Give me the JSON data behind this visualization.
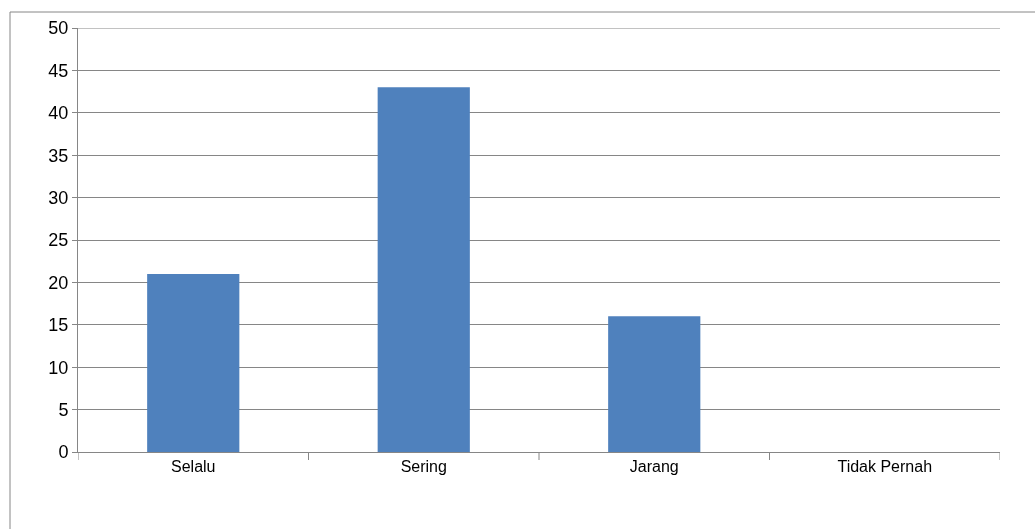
{
  "chart_data": {
    "type": "bar",
    "categories": [
      "Selalu",
      "Sering",
      "Jarang",
      "Tidak Pernah"
    ],
    "values": [
      21,
      43,
      16,
      0
    ],
    "color": "#4f81bd",
    "ylim": [
      0,
      50
    ],
    "yticks": [
      0,
      5,
      10,
      15,
      20,
      25,
      30,
      35,
      40,
      45,
      50
    ],
    "grid": "y"
  }
}
